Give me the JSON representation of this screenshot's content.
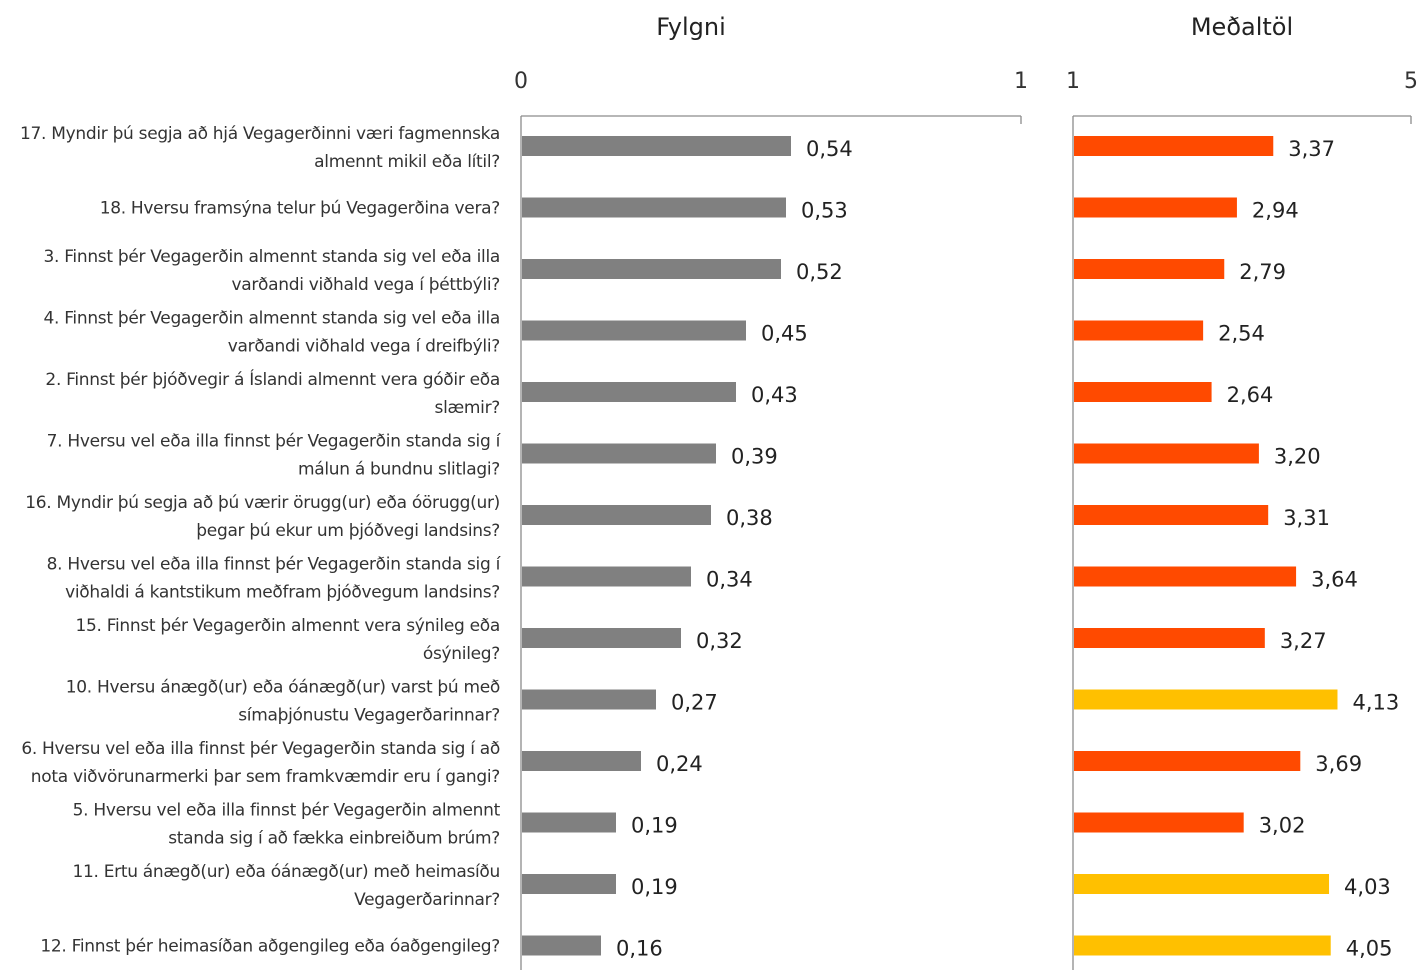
{
  "chart_data": [
    {
      "type": "bar",
      "orientation": "horizontal",
      "title": "Fylgni",
      "xlim": [
        0,
        1
      ],
      "ticks": [
        "0",
        "1"
      ],
      "grid": false,
      "color": "#808080",
      "categories": [
        [
          "17. Myndir þú segja að hjá Vegagerðinni væri fagmennska",
          "almennt mikil eða lítil?"
        ],
        [
          "18. Hversu framsýna telur þú Vegagerðina vera?"
        ],
        [
          "3. Finnst þér Vegagerðin almennt standa sig vel eða illa",
          "varðandi viðhald vega í þéttbýli?"
        ],
        [
          "4. Finnst þér Vegagerðin almennt standa sig vel eða illa",
          "varðandi viðhald vega í dreifbýli?"
        ],
        [
          "2. Finnst þér þjóðvegir á Íslandi almennt vera góðir eða",
          "slæmir?"
        ],
        [
          "7. Hversu vel eða illa finnst þér Vegagerðin standa sig í",
          "málun á bundnu slitlagi?"
        ],
        [
          "16. Myndir þú segja að þú værir örugg(ur) eða óörugg(ur)",
          "þegar þú ekur um þjóðvegi landsins?"
        ],
        [
          "8. Hversu vel eða illa finnst þér Vegagerðin standa sig í",
          "viðhaldi á kantstikum meðfram þjóðvegum landsins?"
        ],
        [
          "15. Finnst þér Vegagerðin almennt vera sýnileg eða",
          "ósýnileg?"
        ],
        [
          "10. Hversu ánægð(ur) eða óánægð(ur) varst þú með",
          "símaþjónustu Vegagerðarinnar?"
        ],
        [
          "6. Hversu vel eða illa finnst þér Vegagerðin standa sig í að",
          "nota viðvörunarmerki þar sem framkvæmdir eru í gangi?"
        ],
        [
          "5. Hversu vel eða illa finnst þér Vegagerðin almennt",
          "standa sig í að fækka einbreiðum brúm?"
        ],
        [
          "11. Ertu ánægð(ur) eða óánægð(ur) með heimasíðu",
          "Vegagerðarinnar?"
        ],
        [
          "12. Finnst þér heimasíðan aðgengileg eða óaðgengileg?"
        ]
      ],
      "values": [
        0.54,
        0.53,
        0.52,
        0.45,
        0.43,
        0.39,
        0.38,
        0.34,
        0.32,
        0.27,
        0.24,
        0.19,
        0.19,
        0.16
      ],
      "labels": [
        "0,54",
        "0,53",
        "0,52",
        "0,45",
        "0,43",
        "0,39",
        "0,38",
        "0,34",
        "0,32",
        "0,27",
        "0,24",
        "0,19",
        "0,19",
        "0,16"
      ]
    },
    {
      "type": "bar",
      "orientation": "horizontal",
      "title": "Meðaltöl",
      "xlim": [
        1,
        5
      ],
      "ticks": [
        "1",
        "5"
      ],
      "grid": false,
      "values": [
        3.37,
        2.94,
        2.79,
        2.54,
        2.64,
        3.2,
        3.31,
        3.64,
        3.27,
        4.13,
        3.69,
        3.02,
        4.03,
        4.05
      ],
      "labels": [
        "3,37",
        "2,94",
        "2,79",
        "2,54",
        "2,64",
        "3,20",
        "3,31",
        "3,64",
        "3,27",
        "4,13",
        "3,69",
        "3,02",
        "4,03",
        "4,05"
      ],
      "colors": [
        "#ff4a00",
        "#ff4a00",
        "#ff4a00",
        "#ff4a00",
        "#ff4a00",
        "#ff4a00",
        "#ff4a00",
        "#ff4a00",
        "#ff4a00",
        "#ffc000",
        "#ff4a00",
        "#ff4a00",
        "#ffc000",
        "#ffc000"
      ]
    }
  ]
}
